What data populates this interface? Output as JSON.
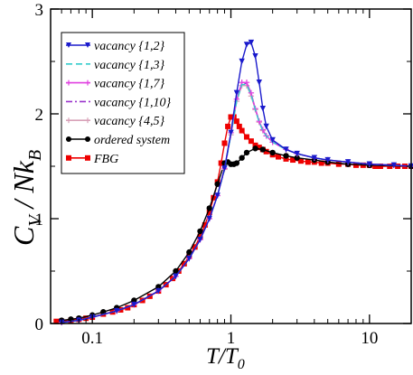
{
  "chart_data": {
    "type": "line",
    "title": "",
    "xlabel": {
      "main": "T/T",
      "sub": "0"
    },
    "ylabel": {
      "main": "C",
      "sub1": "V",
      "mid": " / Nk",
      "sub2": "B"
    },
    "xscale": "log",
    "xlim": [
      0.05,
      20
    ],
    "ylim": [
      0,
      3
    ],
    "xticks": [
      {
        "value": 0.1,
        "label": "0.1"
      },
      {
        "value": 1,
        "label": "1"
      },
      {
        "value": 10,
        "label": "10"
      }
    ],
    "yticks": [
      {
        "value": 0,
        "label": "0"
      },
      {
        "value": 1,
        "label": "1"
      },
      {
        "value": 2,
        "label": "2"
      },
      {
        "value": 3,
        "label": "3"
      }
    ],
    "grid": false,
    "legend_position": "top-left",
    "series": [
      {
        "name": "vacancy {1,2}",
        "color": "#1a1acc",
        "style": "solid",
        "marker": "triangle-down",
        "x": [
          0.06,
          0.08,
          0.1,
          0.15,
          0.2,
          0.3,
          0.4,
          0.5,
          0.6,
          0.7,
          0.8,
          0.9,
          1.0,
          1.1,
          1.2,
          1.3,
          1.4,
          1.5,
          1.6,
          1.7,
          1.8,
          2.0,
          2.5,
          3,
          4,
          5,
          7,
          10,
          15,
          20
        ],
        "y": [
          0.01,
          0.03,
          0.06,
          0.12,
          0.18,
          0.31,
          0.45,
          0.62,
          0.8,
          1.0,
          1.22,
          1.48,
          1.82,
          2.2,
          2.5,
          2.66,
          2.68,
          2.55,
          2.3,
          2.05,
          1.88,
          1.75,
          1.66,
          1.62,
          1.58,
          1.56,
          1.54,
          1.52,
          1.51,
          1.5
        ]
      },
      {
        "name": "vacancy {1,3}",
        "color": "#33cccc",
        "style": "dashed",
        "marker": "none",
        "x": [
          0.06,
          0.08,
          0.1,
          0.15,
          0.2,
          0.3,
          0.4,
          0.5,
          0.6,
          0.7,
          0.8,
          0.9,
          1.0,
          1.1,
          1.2,
          1.3,
          1.4,
          1.5,
          1.6,
          1.7,
          1.8,
          2.0,
          2.5,
          3,
          4,
          5,
          7,
          10,
          15,
          20
        ],
        "y": [
          0.01,
          0.03,
          0.06,
          0.12,
          0.18,
          0.31,
          0.45,
          0.62,
          0.8,
          1.0,
          1.22,
          1.47,
          1.8,
          2.12,
          2.28,
          2.28,
          2.18,
          2.04,
          1.92,
          1.84,
          1.79,
          1.73,
          1.66,
          1.62,
          1.58,
          1.56,
          1.54,
          1.52,
          1.51,
          1.5
        ]
      },
      {
        "name": "vacancy {1,7}",
        "color": "#e040e0",
        "style": "solid",
        "marker": "plus",
        "x": [
          0.06,
          0.08,
          0.1,
          0.15,
          0.2,
          0.3,
          0.4,
          0.5,
          0.6,
          0.7,
          0.8,
          0.9,
          1.0,
          1.1,
          1.2,
          1.3,
          1.4,
          1.5,
          1.6,
          1.7,
          1.8,
          2.0,
          2.5,
          3,
          4,
          5,
          7,
          10,
          15,
          20
        ],
        "y": [
          0.01,
          0.03,
          0.06,
          0.12,
          0.18,
          0.31,
          0.45,
          0.62,
          0.8,
          1.0,
          1.22,
          1.48,
          1.82,
          2.14,
          2.3,
          2.3,
          2.2,
          2.05,
          1.93,
          1.85,
          1.79,
          1.73,
          1.66,
          1.62,
          1.58,
          1.56,
          1.54,
          1.52,
          1.51,
          1.5
        ]
      },
      {
        "name": "vacancy {1,10}",
        "color": "#9933cc",
        "style": "dashdot",
        "marker": "none",
        "x": [
          0.06,
          0.08,
          0.1,
          0.15,
          0.2,
          0.3,
          0.4,
          0.5,
          0.6,
          0.7,
          0.8,
          0.9,
          1.0,
          1.1,
          1.2,
          1.3,
          1.4,
          1.5,
          1.6,
          1.7,
          1.8,
          2.0,
          2.5,
          3,
          4,
          5,
          7,
          10,
          15,
          20
        ],
        "y": [
          0.01,
          0.03,
          0.06,
          0.12,
          0.18,
          0.31,
          0.45,
          0.62,
          0.8,
          1.0,
          1.22,
          1.47,
          1.8,
          2.13,
          2.29,
          2.29,
          2.19,
          2.05,
          1.93,
          1.84,
          1.79,
          1.73,
          1.66,
          1.62,
          1.58,
          1.56,
          1.54,
          1.52,
          1.51,
          1.5
        ]
      },
      {
        "name": "vacancy {4,5}",
        "color": "#d8a0b8",
        "style": "solid",
        "marker": "plus",
        "x": [
          0.06,
          0.08,
          0.1,
          0.15,
          0.2,
          0.3,
          0.4,
          0.5,
          0.6,
          0.7,
          0.8,
          0.9,
          1.0,
          1.1,
          1.2,
          1.3,
          1.4,
          1.5,
          1.6,
          1.7,
          1.8,
          2.0,
          2.5,
          3,
          4,
          5,
          7,
          10,
          15,
          20
        ],
        "y": [
          0.01,
          0.03,
          0.06,
          0.12,
          0.18,
          0.31,
          0.45,
          0.62,
          0.8,
          1.0,
          1.22,
          1.47,
          1.8,
          2.12,
          2.27,
          2.27,
          2.17,
          2.04,
          1.92,
          1.84,
          1.79,
          1.73,
          1.66,
          1.62,
          1.58,
          1.56,
          1.54,
          1.52,
          1.51,
          1.5
        ]
      },
      {
        "name": "ordered system",
        "color": "#000000",
        "style": "solid",
        "marker": "circle",
        "x": [
          0.06,
          0.07,
          0.08,
          0.1,
          0.12,
          0.15,
          0.2,
          0.3,
          0.4,
          0.5,
          0.6,
          0.7,
          0.8,
          0.9,
          0.95,
          1.0,
          1.05,
          1.1,
          1.2,
          1.3,
          1.5,
          1.7,
          2.0,
          2.5,
          3,
          4,
          5,
          7,
          10,
          20
        ],
        "y": [
          0.03,
          0.04,
          0.05,
          0.08,
          0.11,
          0.15,
          0.22,
          0.35,
          0.5,
          0.68,
          0.88,
          1.1,
          1.33,
          1.53,
          1.54,
          1.52,
          1.52,
          1.53,
          1.58,
          1.63,
          1.67,
          1.66,
          1.63,
          1.6,
          1.58,
          1.56,
          1.54,
          1.52,
          1.51,
          1.5
        ]
      },
      {
        "name": "FBG",
        "color": "#ee0000",
        "style": "solid",
        "marker": "square",
        "x": [
          0.055,
          0.06,
          0.07,
          0.08,
          0.09,
          0.1,
          0.12,
          0.14,
          0.16,
          0.18,
          0.2,
          0.23,
          0.26,
          0.3,
          0.34,
          0.38,
          0.42,
          0.46,
          0.5,
          0.55,
          0.6,
          0.65,
          0.7,
          0.75,
          0.8,
          0.85,
          0.9,
          0.95,
          1.0,
          1.05,
          1.1,
          1.15,
          1.2,
          1.3,
          1.4,
          1.5,
          1.6,
          1.7,
          1.8,
          2.0,
          2.2,
          2.5,
          2.8,
          3.2,
          3.6,
          4,
          4.5,
          5,
          6,
          7,
          8,
          9,
          10,
          11,
          12,
          14,
          16,
          18,
          20
        ],
        "y": [
          0.02,
          0.02,
          0.03,
          0.04,
          0.05,
          0.06,
          0.09,
          0.11,
          0.13,
          0.15,
          0.18,
          0.22,
          0.26,
          0.31,
          0.37,
          0.43,
          0.5,
          0.57,
          0.64,
          0.73,
          0.83,
          0.94,
          1.06,
          1.2,
          1.35,
          1.53,
          1.72,
          1.88,
          1.97,
          1.97,
          1.93,
          1.88,
          1.84,
          1.78,
          1.74,
          1.7,
          1.68,
          1.66,
          1.64,
          1.61,
          1.59,
          1.57,
          1.56,
          1.55,
          1.54,
          1.54,
          1.53,
          1.53,
          1.52,
          1.52,
          1.51,
          1.51,
          1.51,
          1.5,
          1.5,
          1.5,
          1.5,
          1.5,
          1.5
        ]
      }
    ]
  }
}
